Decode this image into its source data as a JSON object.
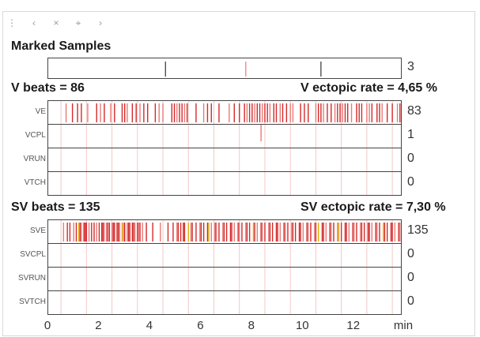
{
  "toolbar": {
    "icons": [
      "grip-icon",
      "back-icon",
      "close-icon",
      "pin-icon",
      "forward-icon"
    ]
  },
  "marked": {
    "title": "Marked Samples",
    "count": "3",
    "marks_min": [
      4.6,
      7.75,
      10.7
    ]
  },
  "v": {
    "beats_label": "V beats = 86",
    "rate_label": "V ectopic rate = 4,65 %",
    "rows": [
      {
        "label": "VE",
        "count": "83"
      },
      {
        "label": "VCPL",
        "count": "1"
      },
      {
        "label": "VRUN",
        "count": "0"
      },
      {
        "label": "VTCH",
        "count": "0"
      }
    ]
  },
  "sv": {
    "beats_label": "SV beats = 135",
    "rate_label": "SV ectopic rate = 7,30 %",
    "rows": [
      {
        "label": "SVE",
        "count": "135"
      },
      {
        "label": "SVCPL",
        "count": "0"
      },
      {
        "label": "SVRUN",
        "count": "0"
      },
      {
        "label": "SVTCH",
        "count": "0"
      }
    ]
  },
  "axis": {
    "ticks": [
      "0",
      "2",
      "4",
      "6",
      "8",
      "10",
      "12"
    ],
    "unit": "min",
    "range_min": [
      0,
      13.9
    ]
  },
  "events": {
    "VE": [
      0.7,
      0.95,
      1.3,
      1.55,
      1.9,
      2.2,
      2.45,
      2.6,
      2.9,
      3.1,
      3.3,
      3.45,
      3.6,
      3.9,
      4.2,
      4.5,
      4.85,
      4.95,
      5.05,
      5.15,
      5.25,
      5.35,
      5.45,
      5.8,
      6.1,
      6.4,
      6.7,
      7.1,
      7.5,
      7.7,
      7.8,
      7.9,
      8.0,
      8.1,
      8.2,
      8.3,
      8.4,
      8.5,
      8.6,
      8.7,
      8.85,
      8.95,
      9.1,
      9.2,
      9.35,
      9.6,
      9.9,
      10.2,
      10.5,
      10.6,
      10.7,
      10.8,
      10.95,
      11.1,
      11.25,
      11.35,
      11.45,
      11.55,
      11.65,
      11.75,
      11.9,
      12.1,
      12.3,
      12.5,
      12.7,
      12.9,
      13.1,
      13.3,
      13.5,
      13.7,
      13.8,
      1.15,
      2.05,
      3.0,
      3.75,
      4.35,
      6.25,
      7.3,
      9.5,
      10.05,
      12.2,
      12.6,
      13.0
    ],
    "VCPL": [
      8.35
    ],
    "SVE": [
      0.6,
      0.75,
      0.85,
      1.0,
      1.1,
      1.2,
      1.3,
      1.4,
      1.5,
      1.6,
      1.7,
      1.8,
      1.9,
      2.0,
      2.1,
      2.2,
      2.3,
      2.4,
      2.5,
      2.6,
      2.7,
      2.8,
      2.9,
      3.0,
      3.1,
      3.2,
      3.3,
      3.4,
      3.5,
      3.6,
      3.7,
      3.85,
      4.1,
      4.4,
      4.7,
      4.9,
      5.05,
      5.2,
      5.35,
      5.5,
      5.65,
      5.8,
      5.95,
      6.1,
      6.25,
      6.4,
      6.55,
      6.7,
      6.85,
      7.0,
      7.15,
      7.3,
      7.45,
      7.6,
      7.75,
      7.9,
      8.05,
      8.2,
      8.35,
      8.5,
      8.65,
      8.8,
      8.95,
      9.1,
      9.25,
      9.4,
      9.55,
      9.7,
      9.85,
      10.0,
      10.15,
      10.3,
      10.45,
      10.6,
      10.75,
      10.9,
      11.05,
      11.2,
      11.35,
      11.5,
      11.65,
      11.8,
      11.95,
      12.1,
      12.25,
      12.4,
      12.55,
      12.7,
      12.85,
      13.0,
      13.15,
      13.3,
      13.45,
      13.6,
      13.75,
      2.15,
      2.35,
      2.55,
      2.75,
      2.95,
      3.15,
      3.35,
      3.55,
      5.1,
      5.3,
      5.6,
      6.0,
      6.3,
      6.6,
      6.9,
      7.2,
      7.5,
      7.8,
      8.1,
      8.4,
      8.7,
      9.0,
      9.3,
      9.6,
      9.9,
      10.2,
      10.5,
      10.8,
      11.1,
      11.4,
      11.7,
      12.0,
      12.3,
      12.6,
      12.9,
      13.2,
      13.5,
      13.8,
      1.25,
      1.45
    ]
  },
  "colors": {
    "event": "#d42a2a",
    "event_light": "#ea7a7a",
    "yellow": "#e0b000",
    "grid": "#f4c8c8"
  }
}
